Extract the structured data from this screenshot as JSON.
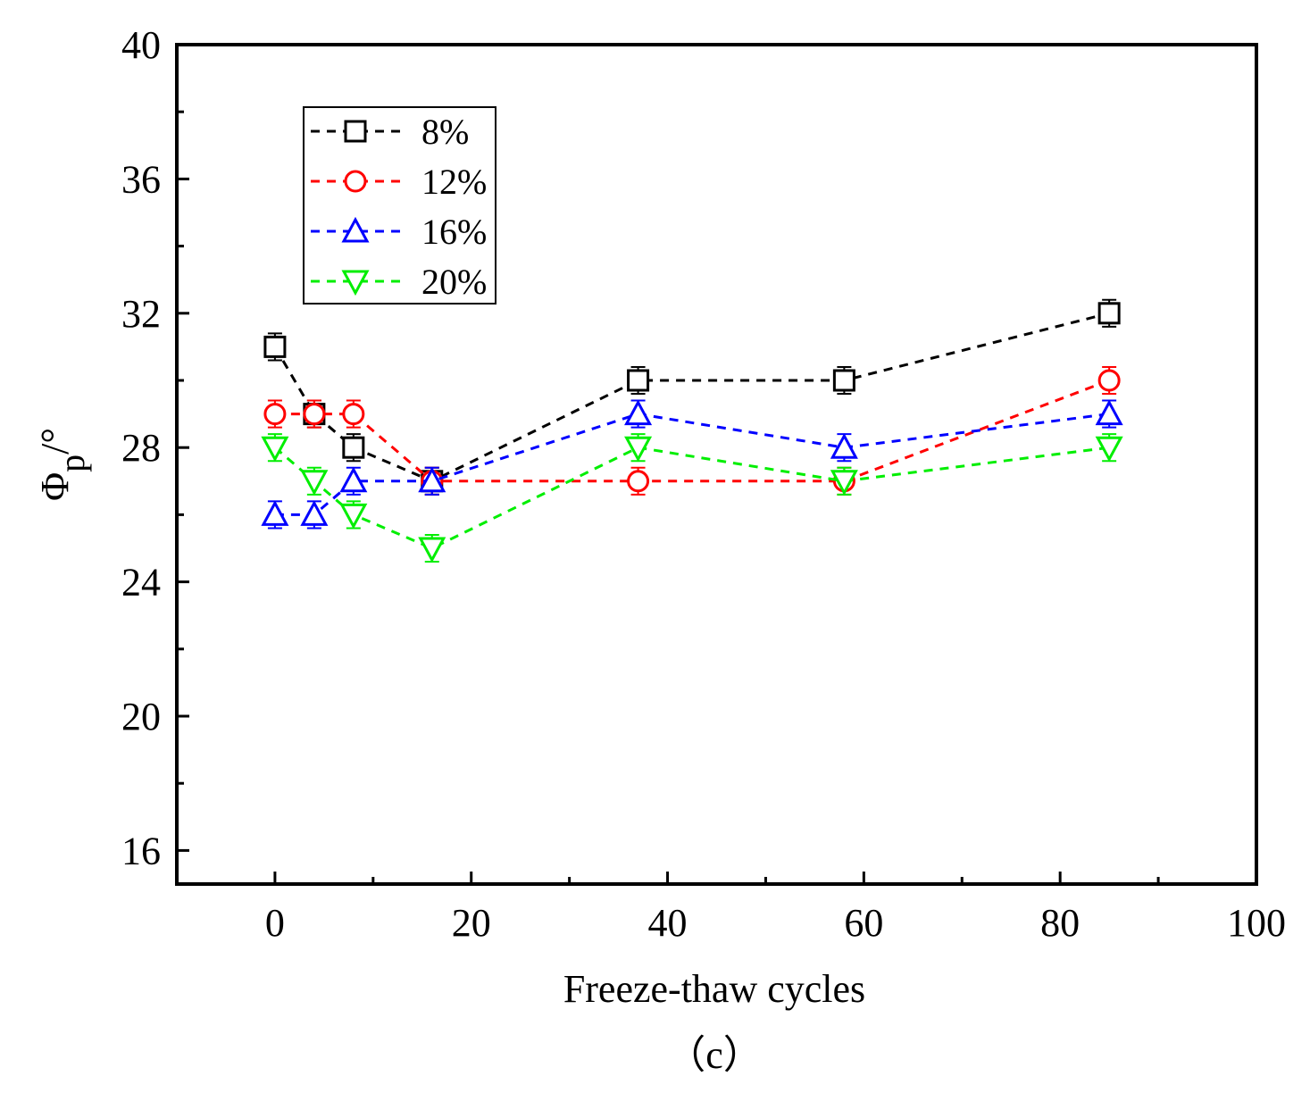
{
  "chart_data": {
    "type": "line",
    "title": "",
    "xlabel": "Freeze-thaw cycles",
    "ylabel_main": "Φ",
    "ylabel_sub": "p",
    "ylabel_unit": "/°",
    "caption": "（c）",
    "xlim": [
      -10,
      100
    ],
    "ylim": [
      15,
      40
    ],
    "xticks": [
      0,
      20,
      40,
      60,
      80,
      100
    ],
    "yticks": [
      16,
      20,
      24,
      28,
      32,
      36,
      40
    ],
    "x_minor_step": 10,
    "y_minor_step": 2,
    "x": [
      0,
      4,
      8,
      16,
      37,
      58,
      85
    ],
    "error": 0.4,
    "legend_position": "top-left",
    "series": [
      {
        "name": "8%",
        "color": "#000000",
        "marker": "square",
        "values": [
          31,
          29,
          28,
          27,
          30,
          30,
          32
        ]
      },
      {
        "name": "12%",
        "color": "#ff0000",
        "marker": "circle",
        "values": [
          29,
          29,
          29,
          27,
          27,
          27,
          30
        ]
      },
      {
        "name": "16%",
        "color": "#0000ff",
        "marker": "triangle-up",
        "values": [
          26,
          26,
          27,
          27,
          29,
          28,
          29
        ]
      },
      {
        "name": "20%",
        "color": "#00ee00",
        "marker": "triangle-down",
        "values": [
          28,
          27,
          26,
          25,
          28,
          27,
          28
        ]
      }
    ]
  }
}
